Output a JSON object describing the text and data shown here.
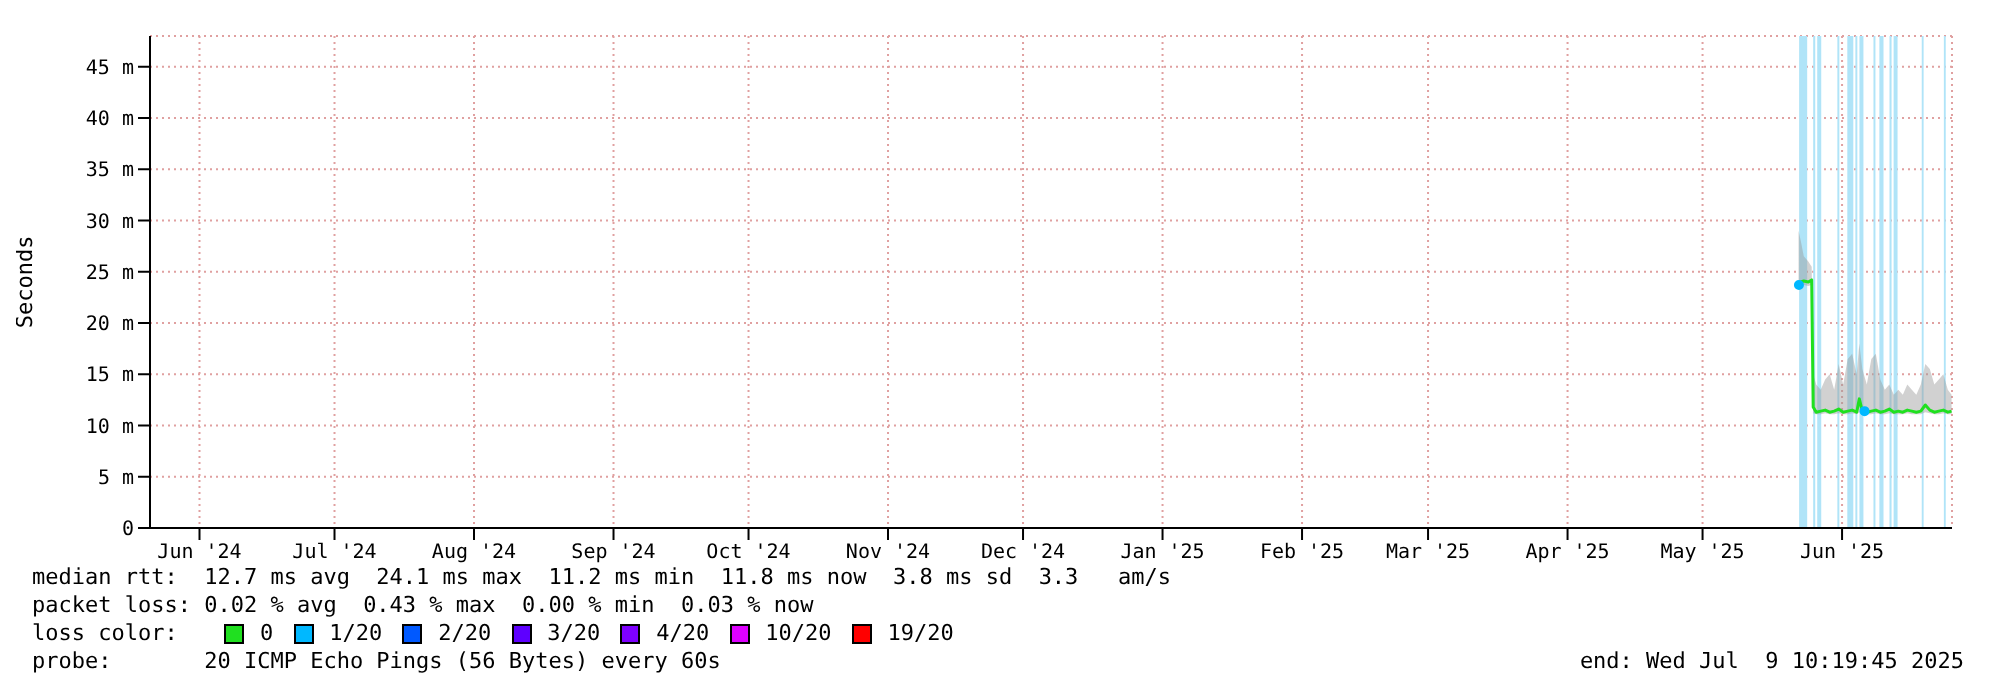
{
  "chart_data": {
    "type": "line",
    "ylabel": "Seconds",
    "xlim": [
      "2024-06-04",
      "2025-07-09T10:19"
    ],
    "xticks": [
      {
        "value": "2024-06-15",
        "label": "Jun '24"
      },
      {
        "value": "2024-07-15",
        "label": "Jul '24"
      },
      {
        "value": "2024-08-15",
        "label": "Aug '24"
      },
      {
        "value": "2024-09-15",
        "label": "Sep '24"
      },
      {
        "value": "2024-10-15",
        "label": "Oct '24"
      },
      {
        "value": "2024-11-15",
        "label": "Nov '24"
      },
      {
        "value": "2024-12-15",
        "label": "Dec '24"
      },
      {
        "value": "2025-01-15",
        "label": "Jan '25"
      },
      {
        "value": "2025-02-15",
        "label": "Feb '25"
      },
      {
        "value": "2025-03-15",
        "label": "Mar '25"
      },
      {
        "value": "2025-04-15",
        "label": "Apr '25"
      },
      {
        "value": "2025-05-15",
        "label": "May '25"
      },
      {
        "value": "2025-06-15",
        "label": "Jun '25"
      }
    ],
    "ylim": [
      0,
      48
    ],
    "yticks": [
      0,
      {
        "value": 5,
        "label": "5 m"
      },
      {
        "value": 10,
        "label": "10 m"
      },
      {
        "value": 15,
        "label": "15 m"
      },
      {
        "value": 20,
        "label": "20 m"
      },
      {
        "value": 25,
        "label": "25 m"
      },
      {
        "value": 30,
        "label": "30 m"
      },
      {
        "value": 35,
        "label": "35 m"
      },
      {
        "value": 40,
        "label": "40 m"
      },
      {
        "value": 45,
        "label": "45 m"
      }
    ],
    "grid": true,
    "legend": "bottom left",
    "legend_title": "loss color:",
    "marker": "none",
    "series": [
      {
        "name": "0",
        "color": "#20e020",
        "x": [
          "2025-06-05T08:00",
          "2025-06-05T20:00",
          "2025-06-06T12:00",
          "2025-06-07T12:00",
          "2025-06-08T06:00",
          "2025-06-08T14:00",
          "2025-06-09T06:00",
          "2025-06-10T06:00",
          "2025-06-11T06:00",
          "2025-06-12T06:00",
          "2025-06-13T06:00",
          "2025-06-14T06:00",
          "2025-06-15T06:00",
          "2025-06-16T06:00",
          "2025-06-17T06:00",
          "2025-06-18T06:00",
          "2025-06-18T20:00",
          "2025-06-19T12:00",
          "2025-06-20T12:00",
          "2025-06-21T12:00",
          "2025-06-22T12:00",
          "2025-06-23T12:00",
          "2025-06-24T12:00",
          "2025-06-25T12:00",
          "2025-06-26T12:00",
          "2025-06-27T12:00",
          "2025-06-28T12:00",
          "2025-06-29T12:00",
          "2025-06-30T12:00",
          "2025-07-01T12:00",
          "2025-07-02T12:00",
          "2025-07-03T12:00",
          "2025-07-04T12:00",
          "2025-07-05T12:00",
          "2025-07-06T12:00",
          "2025-07-07T12:00",
          "2025-07-08T12:00",
          "2025-07-09T08:00"
        ],
        "values": [
          23.6,
          24.0,
          24.1,
          24.0,
          24.2,
          11.8,
          11.3,
          11.4,
          11.5,
          11.3,
          11.4,
          11.6,
          11.3,
          11.4,
          11.5,
          11.3,
          12.6,
          11.4,
          11.3,
          11.4,
          11.5,
          11.3,
          11.4,
          11.6,
          11.3,
          11.4,
          11.3,
          11.5,
          11.4,
          11.3,
          11.4,
          12.0,
          11.5,
          11.3,
          11.4,
          11.5,
          11.3,
          11.4
        ],
        "lower": [
          23.3,
          23.6,
          23.7,
          23.6,
          23.7,
          11.2,
          11.1,
          11.1,
          11.2,
          11.1,
          11.1,
          11.2,
          11.1,
          11.1,
          11.2,
          11.1,
          11.3,
          11.1,
          11.1,
          11.1,
          11.2,
          11.1,
          11.1,
          11.2,
          11.1,
          11.1,
          11.1,
          11.2,
          11.1,
          11.1,
          11.1,
          11.3,
          11.2,
          11.1,
          11.1,
          11.2,
          11.1,
          11.1
        ],
        "upper": [
          29.0,
          28.0,
          26.5,
          26.0,
          25.5,
          15.0,
          14.0,
          13.5,
          14.5,
          15.0,
          13.5,
          16.0,
          14.0,
          16.5,
          17.0,
          15.0,
          18.0,
          15.5,
          14.0,
          16.5,
          17.0,
          14.5,
          13.5,
          14.0,
          13.0,
          13.5,
          13.0,
          14.0,
          13.5,
          13.0,
          14.0,
          16.0,
          15.5,
          14.0,
          14.5,
          15.0,
          13.5,
          13.0
        ]
      },
      {
        "name": "1/20",
        "type": "scatter",
        "marker": "circle",
        "color": "#00b8ff",
        "x": [
          "2025-06-05T10:00",
          "2025-06-20T00:00"
        ],
        "values": [
          23.7,
          11.4
        ]
      },
      {
        "name": "2/20",
        "color": "#0059ff"
      },
      {
        "name": "3/20",
        "color": "#5e00ff"
      },
      {
        "name": "4/20",
        "color": "#7e00ff"
      },
      {
        "name": "10/20",
        "color": "#dd00ff"
      },
      {
        "name": "19/20",
        "color": "#ff0000"
      }
    ],
    "bands": [
      {
        "axis": "x",
        "from": "2025-06-05T11:00",
        "to": "2025-06-07T06:00",
        "color": "#b0e4f8"
      },
      {
        "axis": "x",
        "from": "2025-06-08T14:00",
        "to": "2025-06-09T01:00",
        "color": "#b0e4f8"
      },
      {
        "axis": "x",
        "from": "2025-06-09T11:30",
        "to": "2025-06-10T09:00",
        "color": "#b0e4f8"
      },
      {
        "axis": "x",
        "from": "2025-06-13T23:00",
        "to": "2025-06-14T09:30",
        "color": "#b0e4f8"
      },
      {
        "axis": "x",
        "from": "2025-06-16T04:00",
        "to": "2025-06-17T12:00",
        "color": "#b0e4f8"
      },
      {
        "axis": "x",
        "from": "2025-06-17T23:00",
        "to": "2025-06-18T09:30",
        "color": "#b0e4f8"
      },
      {
        "axis": "x",
        "from": "2025-06-18T20:30",
        "to": "2025-06-19T18:00",
        "color": "#b0e4f8"
      },
      {
        "axis": "x",
        "from": "2025-06-21T23:30",
        "to": "2025-06-22T10:00",
        "color": "#b0e4f8"
      },
      {
        "axis": "x",
        "from": "2025-06-23T07:00",
        "to": "2025-06-24T05:00",
        "color": "#b0e4f8"
      },
      {
        "axis": "x",
        "from": "2025-06-25T13:00",
        "to": "2025-06-26T00:00",
        "color": "#b0e4f8"
      },
      {
        "axis": "x",
        "from": "2025-06-26T11:00",
        "to": "2025-06-27T08:00",
        "color": "#b0e4f8"
      },
      {
        "axis": "x",
        "from": "2025-07-02T17:00",
        "to": "2025-07-03T03:00",
        "color": "#b0e4f8"
      },
      {
        "axis": "x",
        "from": "2025-07-07T15:00",
        "to": "2025-07-08T01:00",
        "color": "#b0e4f8"
      }
    ],
    "annotations": [
      "median rtt:  12.7 ms avg  24.1 ms max  11.2 ms min  11.8 ms now  3.8 ms sd  3.3   am/s",
      "packet loss: 0.02 % avg  0.43 % max  0.00 % min  0.03 % now",
      "probe:       20 ICMP Echo Pings (56 Bytes) every 60s",
      "end: Wed Jul  9 10:19:45 2025"
    ]
  }
}
